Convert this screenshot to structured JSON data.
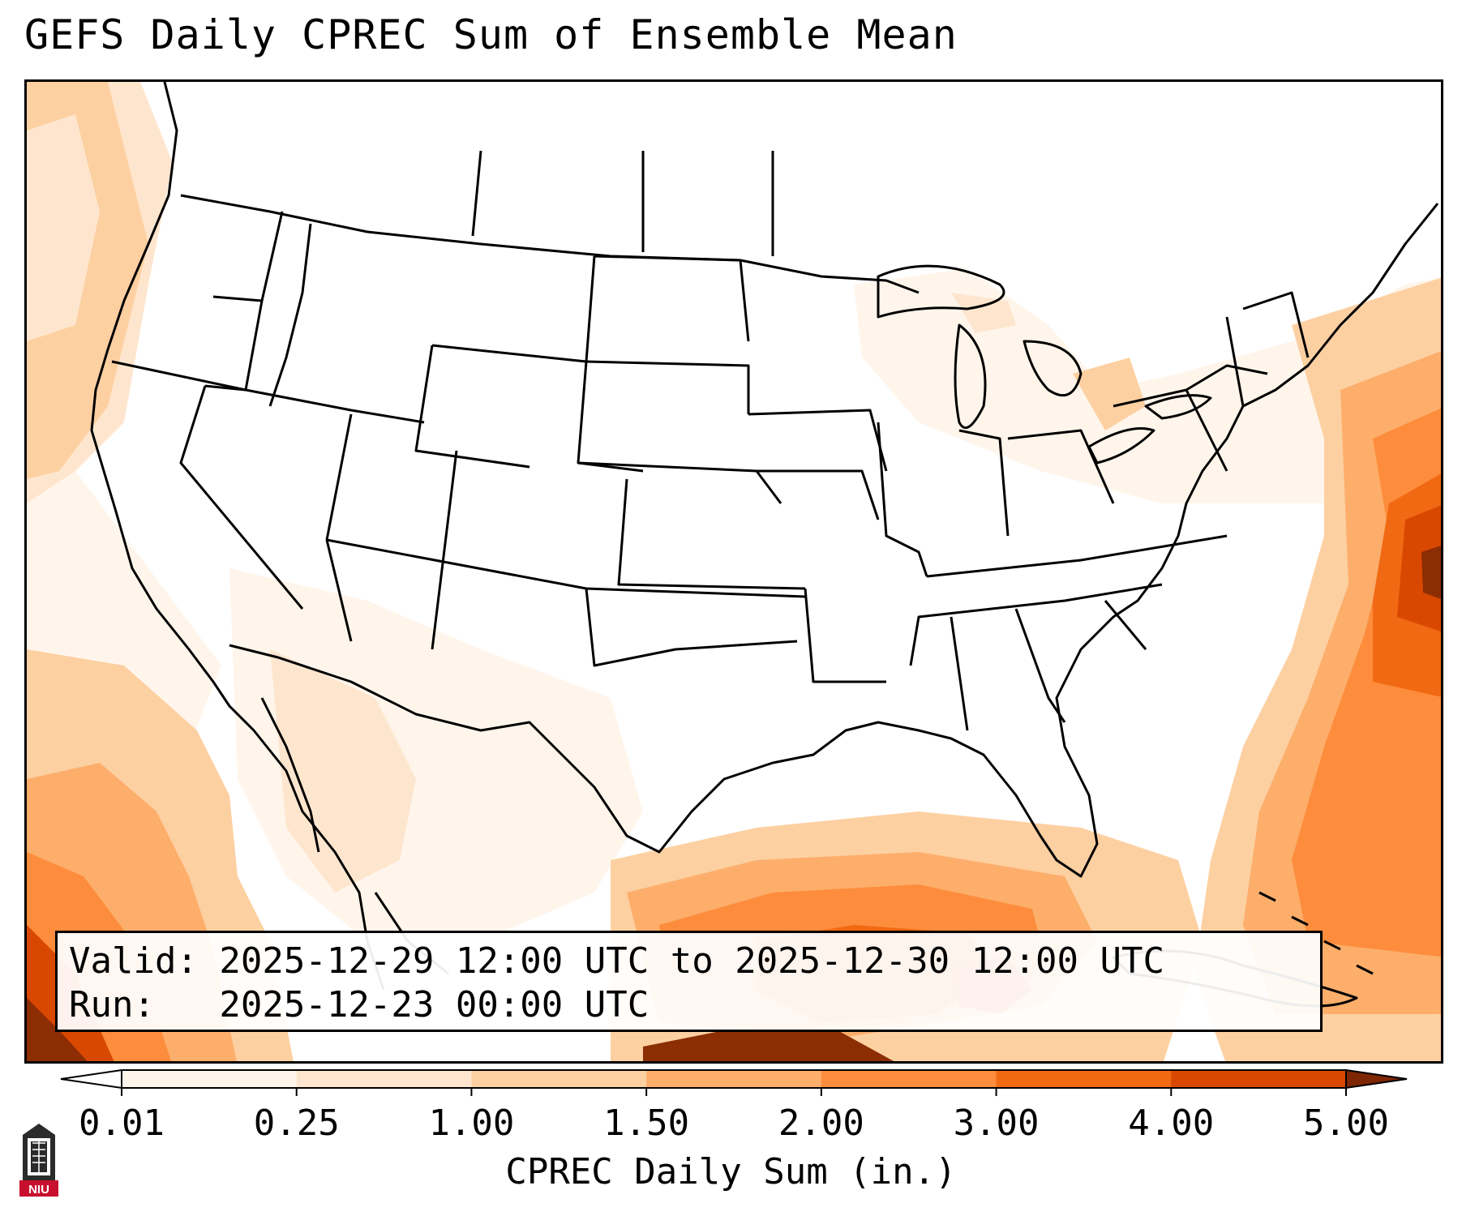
{
  "title": "GEFS Daily CPREC Sum of Ensemble Mean",
  "info": {
    "valid_line": "Valid: 2025-12-29 12:00 UTC to 2025-12-30 12:00 UTC",
    "run_line": "Run:   2025-12-23 00:00 UTC"
  },
  "colorbar": {
    "label": "CPREC Daily Sum (in.)",
    "ticks": [
      "0.01",
      "0.25",
      "1.00",
      "1.50",
      "2.00",
      "3.00",
      "4.00",
      "5.00"
    ],
    "colors": [
      "#fff5eb",
      "#fee6ce",
      "#fdd0a2",
      "#fdae6b",
      "#fd8d3c",
      "#f16913",
      "#d94801",
      "#8c2d04"
    ],
    "under_color": "#ffffff",
    "over_color": "#7f2704"
  },
  "logo": {
    "text": "NIU"
  }
}
